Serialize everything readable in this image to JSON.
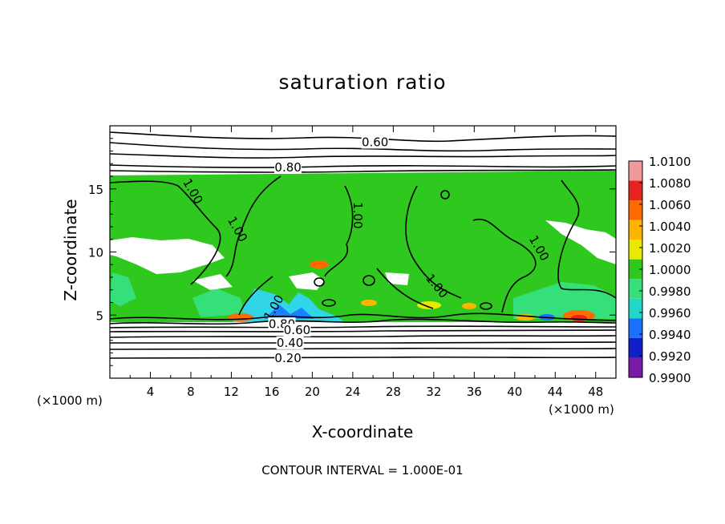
{
  "chart_data": {
    "type": "heatmap",
    "title": "saturation ratio",
    "xlabel": "X-coordinate",
    "ylabel": "Z-coordinate",
    "x_unit_left": "(×1000 m)",
    "x_unit_right": "(×1000 m)",
    "xlim": [
      0,
      50
    ],
    "ylim": [
      0,
      20
    ],
    "x_ticks": [
      4,
      8,
      12,
      16,
      20,
      24,
      28,
      32,
      36,
      40,
      44,
      48
    ],
    "y_ticks": [
      5,
      10,
      15
    ],
    "footer": "CONTOUR INTERVAL = 1.000E-01",
    "colorbar": {
      "levels": [
        "1.0100",
        "1.0080",
        "1.0060",
        "1.0040",
        "1.0020",
        "1.0000",
        "0.9980",
        "0.9960",
        "0.9940",
        "0.9920",
        "0.9900"
      ],
      "colors": [
        "#f29a9a",
        "#e8231f",
        "#ff6a00",
        "#ffb400",
        "#e8e800",
        "#2fc81e",
        "#35e07a",
        "#20d8c8",
        "#1a70ff",
        "#1020c8",
        "#7a1aa8"
      ]
    },
    "contour_labels": [
      {
        "text": "0.60",
        "x": 26.2,
        "y": 18.7
      },
      {
        "text": "0.80",
        "x": 17.6,
        "y": 16.7
      },
      {
        "text": "1.00",
        "x": 8.2,
        "y": 14.8
      },
      {
        "text": "1.00",
        "x": 12.6,
        "y": 11.8
      },
      {
        "text": "1.00",
        "x": 24.5,
        "y": 12.9
      },
      {
        "text": "1.00",
        "x": 42.4,
        "y": 10.3
      },
      {
        "text": "1.00",
        "x": 32.3,
        "y": 7.3
      },
      {
        "text": "1.00",
        "x": 16.2,
        "y": 5.6
      },
      {
        "text": "0.80",
        "x": 17.0,
        "y": 4.3
      },
      {
        "text": "0.60",
        "x": 18.5,
        "y": 3.8
      },
      {
        "text": "0.40",
        "x": 17.8,
        "y": 2.8
      },
      {
        "text": "0.20",
        "x": 17.6,
        "y": 1.6
      }
    ]
  }
}
